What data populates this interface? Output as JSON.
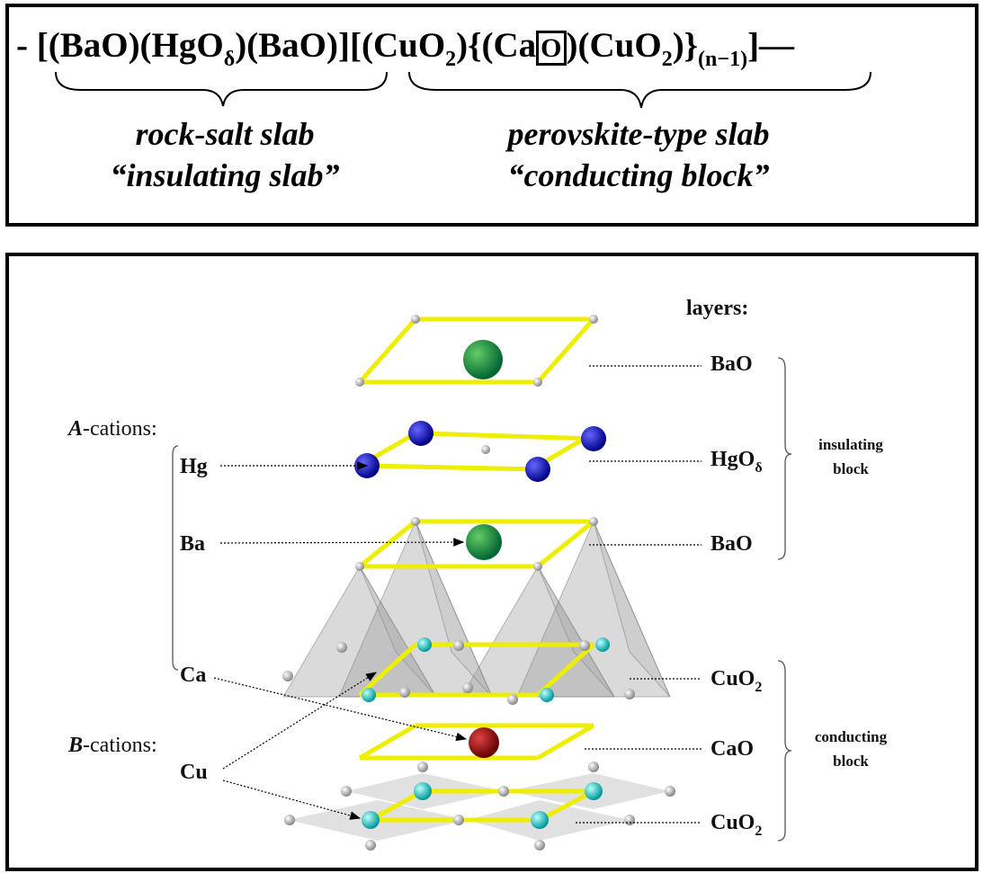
{
  "formula": [
    "-",
    "[(BaO)(HgO",
    "δ",
    ")(BaO)][(CuO",
    "2",
    "){(Ca",
    "O",
    ")(CuO",
    "2",
    ")}",
    "(n−1)",
    "]—"
  ],
  "slabs": [
    {
      "name": "rock-salt slab",
      "alias": "“insulating slab”"
    },
    {
      "name": "perovskite-type slab",
      "alias": "“conducting block”"
    }
  ],
  "structure": {
    "layers_heading": "layers:",
    "layers": [
      {
        "label": "BaO"
      },
      {
        "label": "HgO",
        "subscript": "δ"
      },
      {
        "label": "BaO"
      },
      {
        "label": "CuO",
        "subscript": "2"
      },
      {
        "label": "CaO"
      },
      {
        "label": "CuO",
        "subscript": "2"
      }
    ],
    "blocks": [
      {
        "line1": "insulating",
        "line2": "block"
      },
      {
        "line1": "conducting",
        "line2": "block"
      }
    ],
    "cation_groups": [
      {
        "letter": "A",
        "suffix": "-cations:",
        "members": [
          "Hg",
          "Ba",
          "Ca"
        ]
      },
      {
        "letter": "B",
        "suffix": "-cations:",
        "members": [
          "Cu"
        ]
      }
    ]
  }
}
